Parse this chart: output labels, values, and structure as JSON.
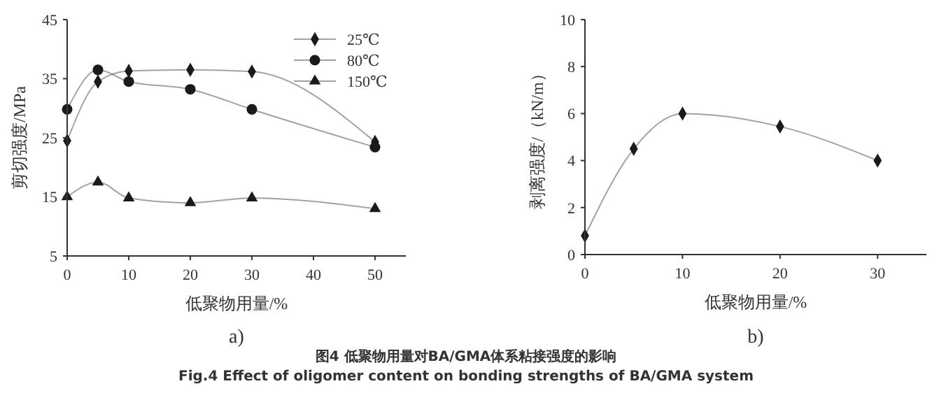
{
  "chart_data": [
    {
      "type": "line",
      "xlabel": "低聚物用量/%",
      "ylabel": "剪切强度/MPa",
      "x": [
        0,
        5,
        10,
        20,
        30,
        50
      ],
      "xlim": [
        0,
        55
      ],
      "xticks": [
        0,
        10,
        20,
        30,
        40,
        50
      ],
      "ylim": [
        5,
        45
      ],
      "yticks": [
        5,
        15,
        25,
        35,
        45
      ],
      "legend": "top right",
      "grid": false,
      "series": [
        {
          "name": "25℃",
          "color": "#1a1a1a",
          "marker": "diamond",
          "values": [
            24.5,
            34.5,
            36.3,
            36.5,
            36.2,
            24.3
          ]
        },
        {
          "name": "80℃",
          "color": "#1a1a1a",
          "marker": "circle",
          "values": [
            29.8,
            36.5,
            34.5,
            33.2,
            29.8,
            23.4
          ]
        },
        {
          "name": "150℃",
          "color": "#1a1a1a",
          "marker": "triangle",
          "values": [
            15,
            17.5,
            14.8,
            14,
            14.8,
            13
          ]
        }
      ],
      "annotations": [
        "a)",
        "图4  低聚物用量对BA/GMA体系粘接强度的影响",
        "Fig.4  Effect of oligomer content on bonding strengths of BA/GMA system"
      ]
    },
    {
      "type": "line",
      "xlabel": "低聚物用量/%",
      "ylabel": "剥离强度/（kN/m）",
      "x": [
        0,
        5,
        10,
        20,
        30
      ],
      "xlim": [
        0,
        35
      ],
      "xticks": [
        0,
        10,
        20,
        30
      ],
      "ylim": [
        0,
        10
      ],
      "yticks": [
        0,
        2,
        4,
        6,
        8,
        10
      ],
      "grid": false,
      "marker": "diamond",
      "series": [
        {
          "color": "#1a1a1a",
          "values": [
            0.8,
            4.5,
            6,
            5.45,
            4
          ]
        }
      ],
      "annotations": [
        "b)"
      ]
    }
  ]
}
